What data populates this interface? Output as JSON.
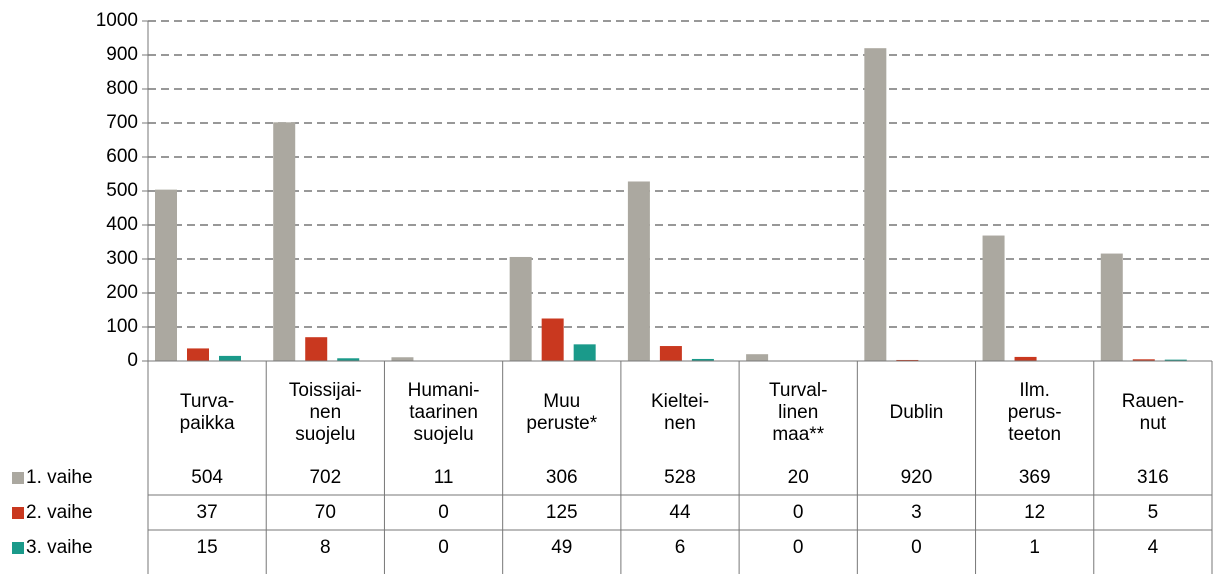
{
  "chart_data": {
    "type": "bar",
    "categories": [
      "Turva-\npaikka",
      "Toissijai-\nnen\nsuojelu",
      "Humani-\ntaarinen\nsuojelu",
      "Muu\nperuste*",
      "Kieltei-\nnen",
      "Turval-\nlinen\nmaa**",
      "Dublin",
      "Ilm.\nperus-\nteeton",
      "Rauen-\nnut"
    ],
    "series": [
      {
        "name": "1. vaihe",
        "color": "#aba8a0",
        "values": [
          504,
          702,
          11,
          306,
          528,
          20,
          920,
          369,
          316
        ]
      },
      {
        "name": "2. vaihe",
        "color": "#c9381f",
        "values": [
          37,
          70,
          0,
          125,
          44,
          0,
          3,
          12,
          5
        ]
      },
      {
        "name": "3. vaihe",
        "color": "#1a9a8a",
        "values": [
          15,
          8,
          0,
          49,
          6,
          0,
          0,
          1,
          4
        ]
      }
    ],
    "ylim": [
      0,
      1000
    ],
    "yticks": [
      0,
      100,
      200,
      300,
      400,
      500,
      600,
      700,
      800,
      900,
      1000
    ],
    "grid": true
  }
}
